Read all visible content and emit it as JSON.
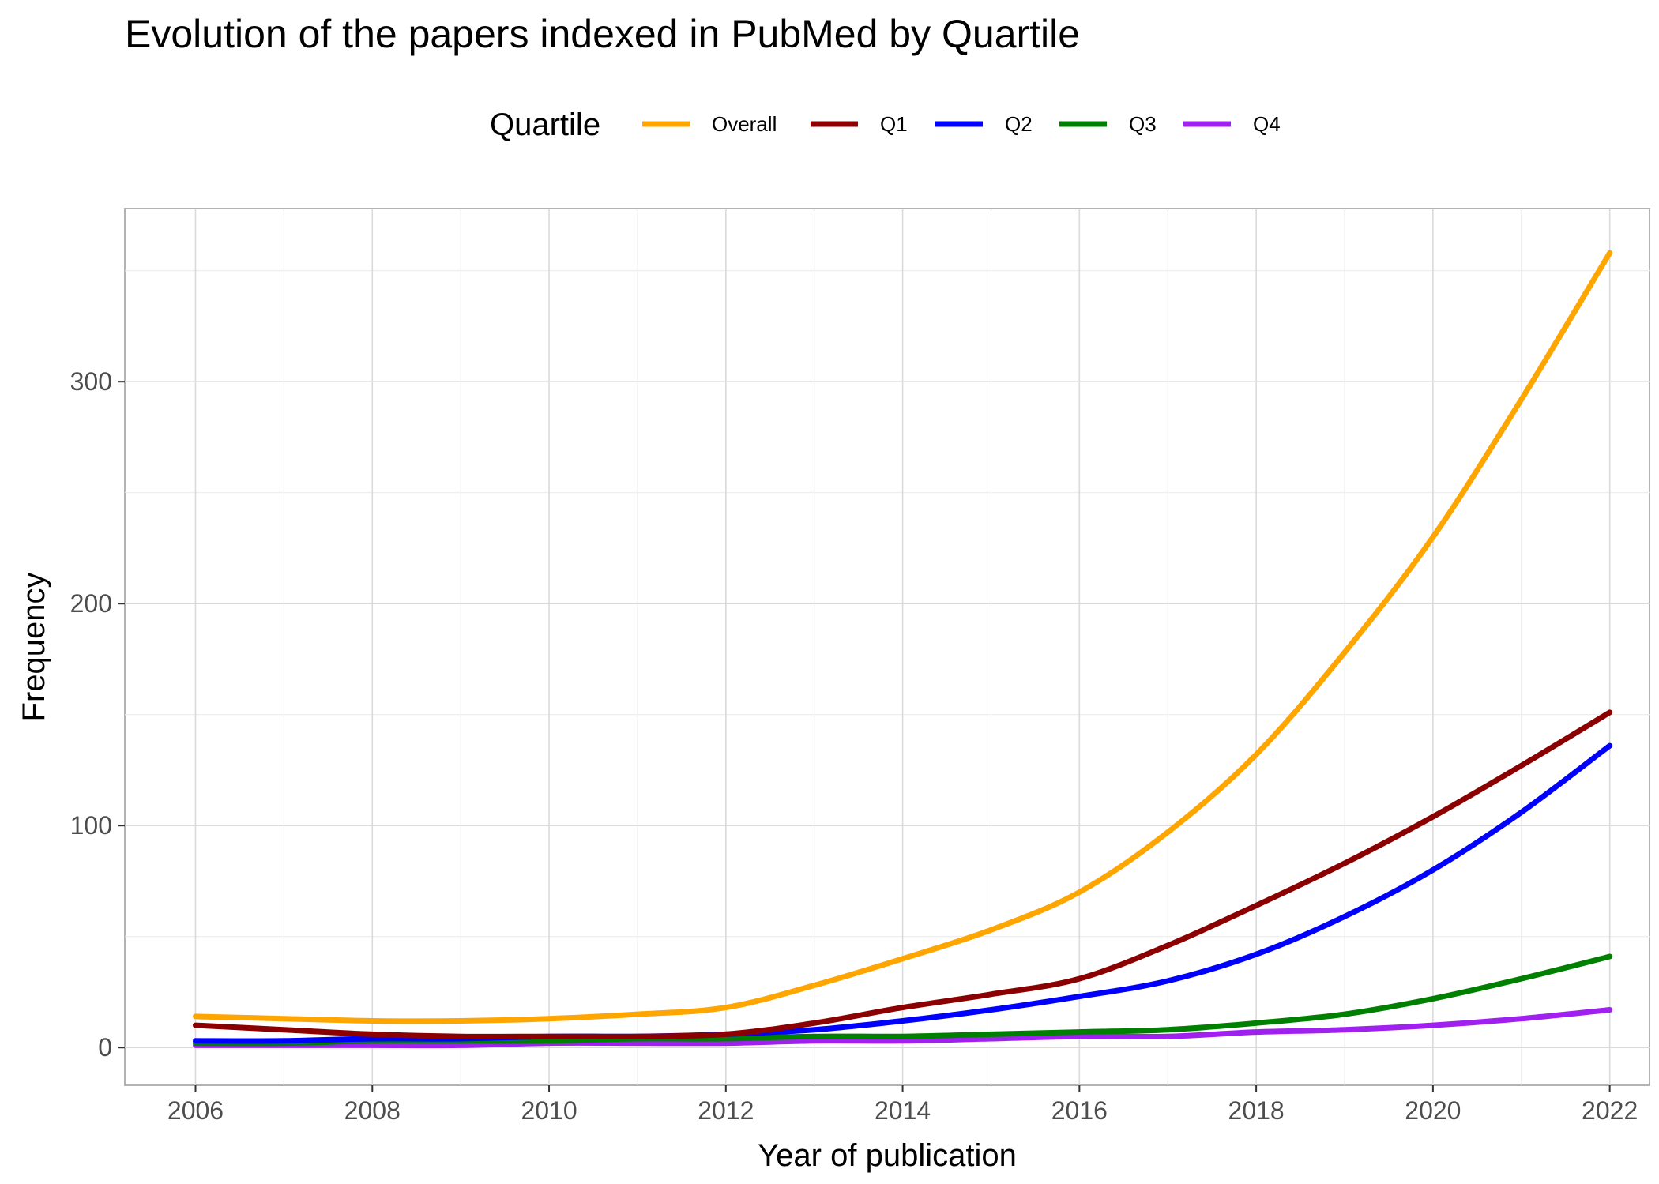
{
  "chart_data": {
    "type": "line",
    "title": "Evolution of the papers indexed in PubMed by Quartile",
    "xlabel": "Year of publication",
    "ylabel": "Frequency",
    "xlim": [
      2005.2,
      2022.45
    ],
    "ylim": [
      -17,
      378
    ],
    "x_ticks": [
      2006,
      2008,
      2010,
      2012,
      2014,
      2016,
      2018,
      2020,
      2022
    ],
    "x_tick_labels": [
      "2006",
      "2008",
      "2010",
      "2012",
      "2014",
      "2016",
      "2018",
      "2020",
      "2022"
    ],
    "x_minor_ticks": [
      2007,
      2009,
      2011,
      2013,
      2015,
      2017,
      2019,
      2021
    ],
    "y_ticks": [
      0,
      100,
      200,
      300
    ],
    "y_tick_labels": [
      "0",
      "100",
      "200",
      "300"
    ],
    "y_minor_ticks": [
      50,
      150,
      250,
      350
    ],
    "grid": true,
    "legend": {
      "title": "Quartile",
      "position": "top"
    },
    "x": [
      2006,
      2007,
      2008,
      2009,
      2010,
      2011,
      2012,
      2013,
      2014,
      2015,
      2016,
      2017,
      2018,
      2019,
      2020,
      2021,
      2022
    ],
    "series": [
      {
        "name": "Overall",
        "color": "#FFA500",
        "values": [
          14,
          13,
          12,
          12,
          13,
          15,
          18,
          28,
          40,
          53,
          70,
          97,
          132,
          178,
          230,
          292,
          358
        ]
      },
      {
        "name": "Q1",
        "color": "#8B0000",
        "values": [
          10,
          8,
          6,
          5,
          5,
          5,
          6,
          11,
          18,
          24,
          31,
          46,
          64,
          83,
          104,
          127,
          151
        ]
      },
      {
        "name": "Q2",
        "color": "#0000FF",
        "values": [
          3,
          3,
          4,
          4,
          5,
          5,
          6,
          8,
          12,
          17,
          23,
          30,
          42,
          59,
          80,
          106,
          136
        ]
      },
      {
        "name": "Q3",
        "color": "#008000",
        "values": [
          2,
          2,
          3,
          3,
          3,
          4,
          4,
          5,
          5,
          6,
          7,
          8,
          11,
          15,
          22,
          31,
          41
        ]
      },
      {
        "name": "Q4",
        "color": "#A020F0",
        "values": [
          1,
          1,
          1,
          1,
          2,
          2,
          2,
          3,
          3,
          4,
          5,
          5,
          7,
          8,
          10,
          13,
          17
        ]
      }
    ]
  }
}
